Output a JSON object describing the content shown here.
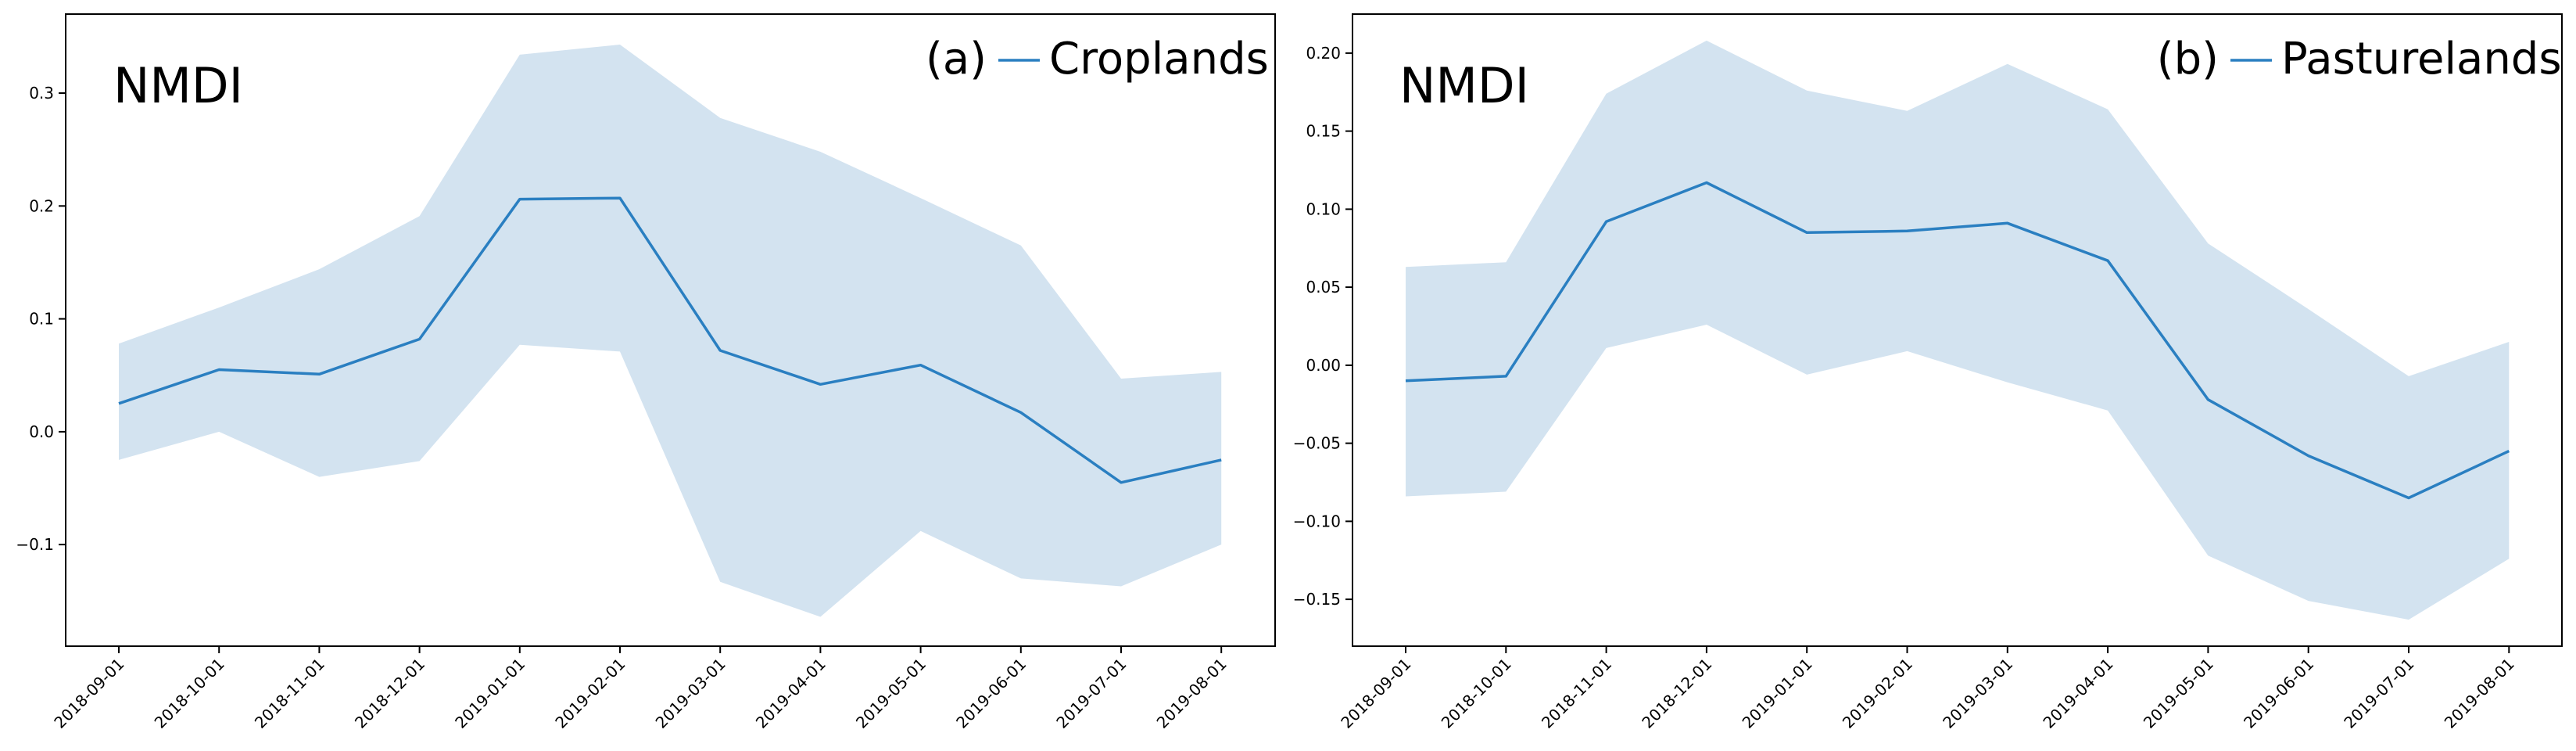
{
  "chart_data": [
    {
      "type": "line",
      "panel_tag": "(a)",
      "title": "NMDI",
      "legend": "Croplands",
      "legend_placement": "top-right",
      "categories": [
        "2018-09-01",
        "2018-10-01",
        "2018-11-01",
        "2018-12-01",
        "2019-01-01",
        "2019-02-01",
        "2019-03-01",
        "2019-04-01",
        "2019-05-01",
        "2019-06-01",
        "2019-07-01",
        "2019-08-01"
      ],
      "mean": [
        0.025,
        0.055,
        0.051,
        0.082,
        0.206,
        0.207,
        0.072,
        0.042,
        0.059,
        0.017,
        -0.045,
        -0.025
      ],
      "upper": [
        0.078,
        0.11,
        0.144,
        0.191,
        0.334,
        0.343,
        0.278,
        0.248,
        0.207,
        0.165,
        0.047,
        0.053
      ],
      "lower": [
        -0.025,
        0.0,
        -0.04,
        -0.026,
        0.077,
        0.071,
        -0.133,
        -0.164,
        -0.088,
        -0.13,
        -0.137,
        -0.1
      ],
      "ylim": [
        -0.19,
        0.37
      ],
      "yticks": [
        -0.1,
        0.0,
        0.1,
        0.2,
        0.3
      ],
      "ytick_labels": [
        "−0.1",
        "0.0",
        "0.1",
        "0.2",
        "0.3"
      ],
      "line_color": "#2a7fc1",
      "band_color": "#d3e3f0"
    },
    {
      "type": "line",
      "panel_tag": "(b)",
      "title": "NMDI",
      "legend": "Pasturelands",
      "legend_placement": "top-right",
      "categories": [
        "2018-09-01",
        "2018-10-01",
        "2018-11-01",
        "2018-12-01",
        "2019-01-01",
        "2019-02-01",
        "2019-03-01",
        "2019-04-01",
        "2019-05-01",
        "2019-06-01",
        "2019-07-01",
        "2019-08-01"
      ],
      "mean": [
        -0.01,
        -0.007,
        0.092,
        0.117,
        0.085,
        0.086,
        0.091,
        0.067,
        -0.022,
        -0.058,
        -0.085,
        -0.055
      ],
      "upper": [
        0.063,
        0.066,
        0.174,
        0.208,
        0.176,
        0.163,
        0.193,
        0.164,
        0.078,
        0.036,
        -0.007,
        0.015
      ],
      "lower": [
        -0.084,
        -0.081,
        0.011,
        0.026,
        -0.006,
        0.009,
        -0.011,
        -0.029,
        -0.122,
        -0.151,
        -0.163,
        -0.124
      ],
      "ylim": [
        -0.18,
        0.225
      ],
      "yticks": [
        -0.15,
        -0.1,
        -0.05,
        0.0,
        0.05,
        0.1,
        0.15,
        0.2
      ],
      "ytick_labels": [
        "−0.15",
        "−0.10",
        "−0.05",
        "0.00",
        "0.05",
        "0.10",
        "0.15",
        "0.20"
      ],
      "line_color": "#2a7fc1",
      "band_color": "#d3e3f0"
    }
  ]
}
